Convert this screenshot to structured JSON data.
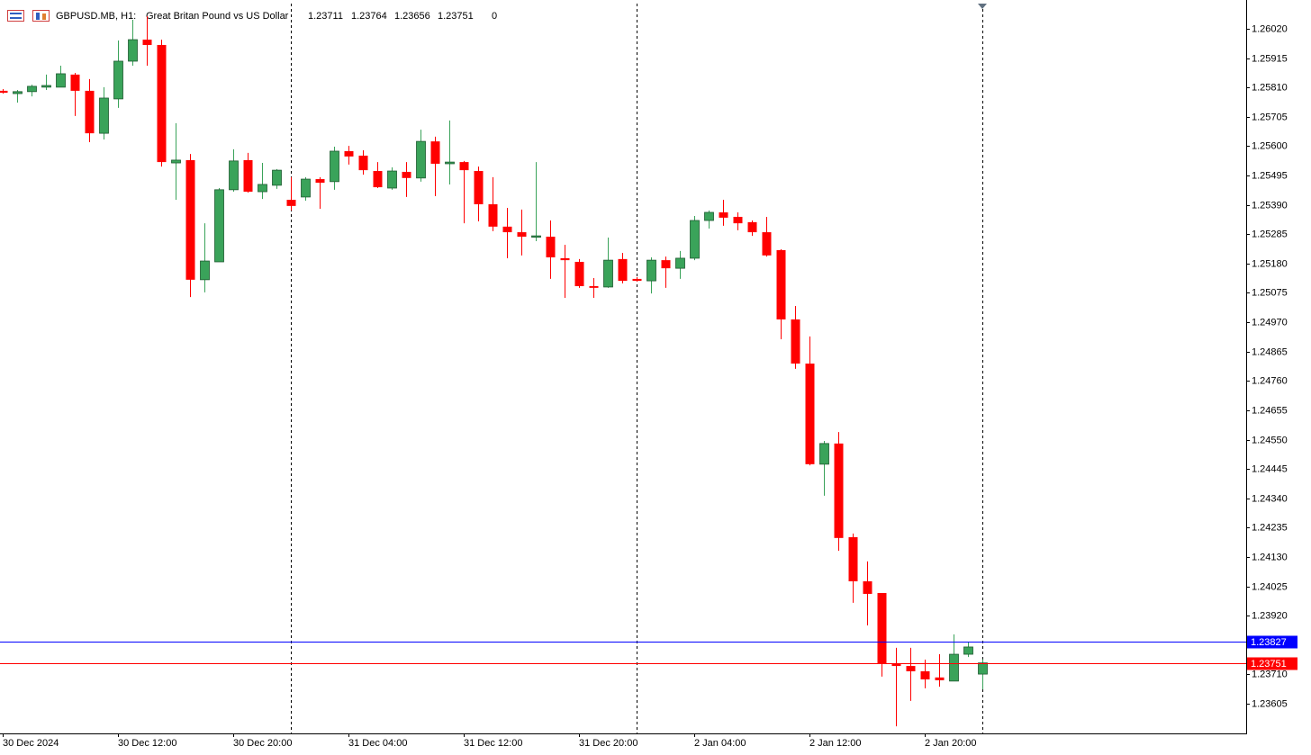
{
  "chart_data": {
    "type": "candlestick",
    "symbol": "GBPUSD.MB, H1:",
    "description": "Great Britan Pound vs US Dollar",
    "volume": 0,
    "up_color": "#3aa35a",
    "down_color": "#ff0000",
    "categories": [
      "30 Dec 2024",
      null,
      null,
      null,
      null,
      null,
      null,
      null,
      "30 Dec 12:00",
      null,
      null,
      null,
      null,
      null,
      null,
      null,
      "30 Dec 20:00",
      null,
      null,
      null,
      null,
      null,
      null,
      null,
      "31 Dec 04:00",
      null,
      null,
      null,
      null,
      null,
      null,
      null,
      "31 Dec 12:00",
      null,
      null,
      null,
      null,
      null,
      null,
      null,
      "31 Dec 20:00",
      null,
      null,
      null,
      null,
      null,
      null,
      null,
      "2 Jan 04:00",
      null,
      null,
      null,
      null,
      null,
      null,
      null,
      "2 Jan 12:00",
      null,
      null,
      null,
      null,
      null,
      null,
      null,
      "2 Jan 20:00",
      null,
      null,
      null,
      null
    ],
    "open": [
      1.25798,
      1.25788,
      1.25795,
      1.25811,
      1.25811,
      1.25856,
      1.25798,
      1.25646,
      1.25769,
      1.25904,
      1.25981,
      1.25962,
      1.2554,
      1.2555,
      1.25122,
      1.25186,
      1.25444,
      1.2555,
      1.25437,
      1.2546,
      1.25408,
      1.25418,
      1.25482,
      1.25473,
      1.25582,
      1.25566,
      1.25511,
      1.2545,
      1.25508,
      1.25486,
      1.25617,
      1.25537,
      1.25543,
      1.25511,
      1.25392,
      1.25312,
      1.25292,
      1.25276,
      1.25276,
      1.25199,
      1.25186,
      1.25099,
      1.25096,
      1.25196,
      1.25125,
      1.25118,
      1.25192,
      1.25163,
      1.25199,
      1.25334,
      1.25363,
      1.25347,
      1.25328,
      1.25292,
      1.25228,
      1.2498,
      1.24822,
      1.24462,
      1.24536,
      1.24201,
      1.24043,
      1.24001,
      1.23747,
      1.2374,
      1.23721,
      1.23699,
      1.23686,
      1.23782,
      1.23711
    ],
    "high": [
      1.25804,
      1.25801,
      1.2582,
      1.25856,
      1.25888,
      1.25862,
      1.2584,
      1.25811,
      1.25978,
      1.26052,
      1.26065,
      1.25981,
      1.25682,
      1.25572,
      1.25324,
      1.2545,
      1.25589,
      1.25576,
      1.2554,
      1.25518,
      1.25489,
      1.25489,
      1.25489,
      1.25598,
      1.25601,
      1.25585,
      1.25543,
      1.25524,
      1.25543,
      1.25659,
      1.25634,
      1.25692,
      1.25547,
      1.25527,
      1.25489,
      1.25379,
      1.25373,
      1.25543,
      1.25334,
      1.25247,
      1.25196,
      1.25128,
      1.25273,
      1.25218,
      1.25131,
      1.25202,
      1.25205,
      1.25225,
      1.2535,
      1.2537,
      1.25408,
      1.25363,
      1.25334,
      1.25347,
      1.25231,
      1.25028,
      1.24919,
      1.24545,
      1.24577,
      1.24214,
      1.24114,
      1.24001,
      1.23805,
      1.23805,
      1.23763,
      1.23782,
      1.23853,
      1.23824,
      1.23764
    ],
    "low": [
      1.25788,
      1.25756,
      1.25778,
      1.25801,
      1.25811,
      1.25708,
      1.25614,
      1.25624,
      1.25737,
      1.25888,
      1.25888,
      1.25527,
      1.25408,
      1.2506,
      1.25077,
      1.25186,
      1.25437,
      1.25434,
      1.25411,
      1.25447,
      1.2537,
      1.25405,
      1.25376,
      1.25444,
      1.25534,
      1.25498,
      1.2545,
      1.25444,
      1.25418,
      1.25473,
      1.25421,
      1.25463,
      1.25324,
      1.25331,
      1.25296,
      1.25199,
      1.25209,
      1.2526,
      1.25125,
      1.25057,
      1.25093,
      1.25057,
      1.25093,
      1.25109,
      1.25115,
      1.25073,
      1.25093,
      1.25125,
      1.25192,
      1.25305,
      1.25315,
      1.25299,
      1.25279,
      1.25205,
      1.24909,
      1.24803,
      1.24458,
      1.24349,
      1.24152,
      1.23966,
      1.23885,
      1.23702,
      1.23524,
      1.23615,
      1.2366,
      1.23666,
      1.23686,
      1.23772,
      1.23656
    ],
    "close": [
      1.25791,
      1.25795,
      1.25814,
      1.25817,
      1.25859,
      1.25798,
      1.25646,
      1.25772,
      1.25904,
      1.25981,
      1.25962,
      1.25543,
      1.2555,
      1.25122,
      1.25189,
      1.25444,
      1.25547,
      1.25437,
      1.25463,
      1.25514,
      1.25386,
      1.25482,
      1.25469,
      1.25582,
      1.25563,
      1.25514,
      1.25453,
      1.25511,
      1.25486,
      1.25617,
      1.25537,
      1.25543,
      1.25514,
      1.25392,
      1.25312,
      1.25292,
      1.25276,
      1.25279,
      1.25202,
      1.25192,
      1.25099,
      1.25093,
      1.25192,
      1.25118,
      1.25118,
      1.25192,
      1.25163,
      1.25199,
      1.25334,
      1.25363,
      1.25344,
      1.25324,
      1.25292,
      1.25209,
      1.2498,
      1.24822,
      1.24462,
      1.24536,
      1.24198,
      1.24043,
      1.23998,
      1.23747,
      1.2374,
      1.23721,
      1.23692,
      1.23689,
      1.23782,
      1.23808,
      1.23751
    ],
    "ylim": [
      1.23502,
      1.2611
    ],
    "yticks": [
      {
        "value": 1.2602,
        "label": "1.26020"
      },
      1.25915,
      {
        "value": 1.2581,
        "label": "1.25810"
      },
      1.25705,
      {
        "value": 1.256,
        "label": "1.25600"
      },
      1.25495,
      {
        "value": 1.2539,
        "label": "1.25390"
      },
      1.25285,
      {
        "value": 1.2518,
        "label": "1.25180"
      },
      1.25075,
      {
        "value": 1.2497,
        "label": "1.24970"
      },
      1.24865,
      {
        "value": 1.2476,
        "label": "1.24760"
      },
      1.24655,
      {
        "value": 1.2455,
        "label": "1.24550"
      },
      1.24445,
      {
        "value": 1.2434,
        "label": "1.24340"
      },
      1.24235,
      {
        "value": 1.2413,
        "label": "1.24130"
      },
      1.24025,
      {
        "value": 1.2392,
        "label": "1.23920"
      },
      {
        "value": 1.2371,
        "label": "1.23710"
      },
      1.23605
    ],
    "price_lines": [
      {
        "value": 1.23827,
        "color": "#0000ff"
      },
      {
        "value": 1.23751,
        "color": "#ff0000"
      }
    ]
  }
}
